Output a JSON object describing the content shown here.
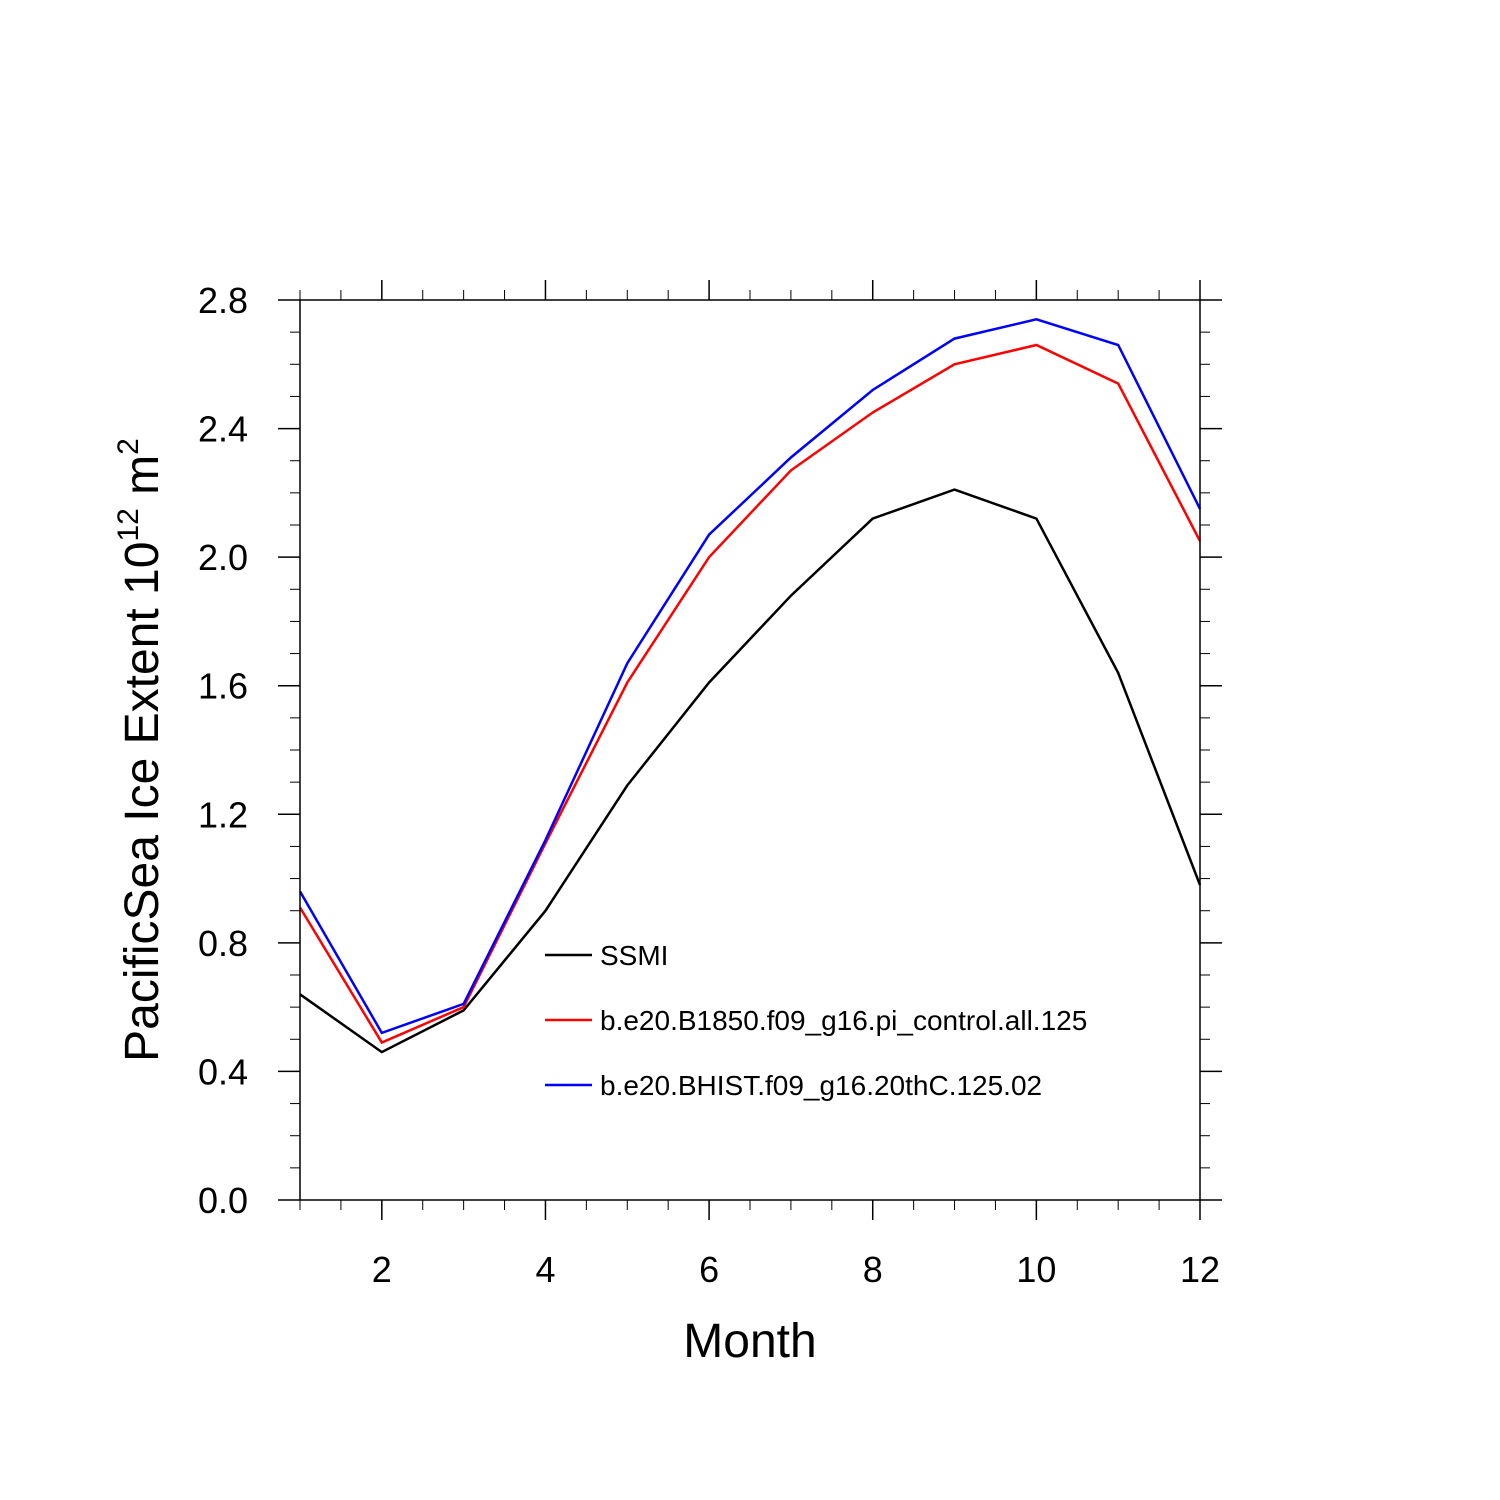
{
  "chart_data": {
    "type": "line",
    "xlabel": "Month",
    "ylabel": {
      "prefix": "PacificSea Ice Extent 10",
      "exponent1": "12",
      "unit": " m",
      "exponent2": "2"
    },
    "xlim": [
      1,
      12
    ],
    "ylim": [
      0.0,
      2.8
    ],
    "xticks": [
      2,
      4,
      6,
      8,
      10,
      12
    ],
    "xtick_labels": [
      "2",
      "4",
      "6",
      "8",
      "10",
      "12"
    ],
    "yticks": [
      0.0,
      0.4,
      0.8,
      1.2,
      1.6,
      2.0,
      2.4,
      2.8
    ],
    "ytick_labels": [
      "0.0",
      "0.4",
      "0.8",
      "1.2",
      "1.6",
      "2.0",
      "2.4",
      "2.8"
    ],
    "grid": false,
    "legend_position": "center-bottom (inside plot)",
    "x": [
      1,
      2,
      3,
      4,
      5,
      6,
      7,
      8,
      9,
      10,
      11,
      12
    ],
    "series": [
      {
        "name": "SSMI",
        "color": "#000000",
        "values": [
          0.64,
          0.46,
          0.59,
          0.9,
          1.29,
          1.61,
          1.88,
          2.12,
          2.21,
          2.12,
          1.64,
          0.98
        ]
      },
      {
        "name": "b.e20.B1850.f09_g16.pi_control.all.125",
        "color": "#ff0000",
        "values": [
          0.91,
          0.49,
          0.6,
          1.11,
          1.61,
          2.0,
          2.27,
          2.45,
          2.6,
          2.66,
          2.54,
          2.05
        ]
      },
      {
        "name": "b.e20.BHIST.f09_g16.20thC.125.02",
        "color": "#0000ff",
        "values": [
          0.96,
          0.52,
          0.61,
          1.12,
          1.67,
          2.07,
          2.31,
          2.52,
          2.68,
          2.74,
          2.66,
          2.15
        ]
      }
    ]
  }
}
